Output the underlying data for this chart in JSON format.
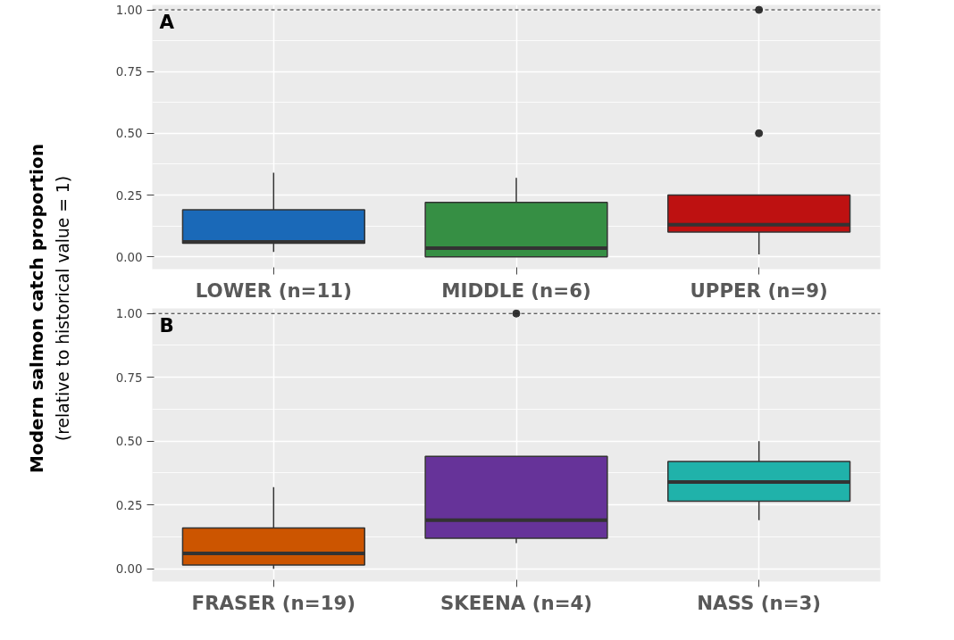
{
  "chart_data": [
    {
      "type": "box",
      "ylabel": "Modern salmon catch proportion\n(relative to historical value = 1)",
      "annotations": [
        "A"
      ],
      "categories": [
        "LOWER (n=11)",
        "MIDDLE (n=6)",
        "UPPER (n=9)"
      ],
      "colors": [
        "#1a69b8",
        "#368f44",
        "#be1111"
      ],
      "boxes": [
        {
          "low": 0.02,
          "q1": 0.055,
          "median": 0.06,
          "q3": 0.19,
          "high": 0.34
        },
        {
          "low": 0.0,
          "q1": 0.0,
          "median": 0.035,
          "q3": 0.22,
          "high": 0.32
        },
        {
          "low": 0.01,
          "q1": 0.1,
          "median": 0.13,
          "q3": 0.25,
          "high": 0.25,
          "outliers": [
            0.5,
            1.0
          ]
        }
      ],
      "ylim": [
        -0.05,
        1.02
      ],
      "yticks": [
        {
          "value": 0,
          "label": "0.00"
        },
        {
          "value": 0.25,
          "label": "0.25"
        },
        {
          "value": 0.5,
          "label": "0.50"
        },
        {
          "value": 0.75,
          "label": "0.75"
        },
        {
          "value": 1,
          "label": "1.00"
        }
      ],
      "grid": true,
      "ref_lines": [
        {
          "axis": "y",
          "value": 1,
          "line_style": "dashed"
        }
      ]
    },
    {
      "type": "box",
      "annotations": [
        "B"
      ],
      "categories": [
        "FRASER (n=19)",
        "SKEENA (n=4)",
        "NASS (n=3)"
      ],
      "colors": [
        "#cc5500",
        "#663399",
        "#20b2aa"
      ],
      "boxes": [
        {
          "low": 0.0,
          "q1": 0.015,
          "median": 0.06,
          "q3": 0.16,
          "high": 0.32
        },
        {
          "low": 0.1,
          "q1": 0.12,
          "median": 0.19,
          "q3": 0.44,
          "high": 0.44,
          "outliers": [
            1.0
          ]
        },
        {
          "low": 0.19,
          "q1": 0.265,
          "median": 0.34,
          "q3": 0.42,
          "high": 0.5
        }
      ],
      "ylim": [
        -0.05,
        1.02
      ],
      "yticks": [
        {
          "value": 0,
          "label": "0.00"
        },
        {
          "value": 0.25,
          "label": "0.25"
        },
        {
          "value": 0.5,
          "label": "0.50"
        },
        {
          "value": 0.75,
          "label": "0.75"
        },
        {
          "value": 1,
          "label": "1.00"
        }
      ],
      "grid": true,
      "ref_lines": [
        {
          "axis": "y",
          "value": 1,
          "line_style": "dashed"
        }
      ]
    }
  ]
}
